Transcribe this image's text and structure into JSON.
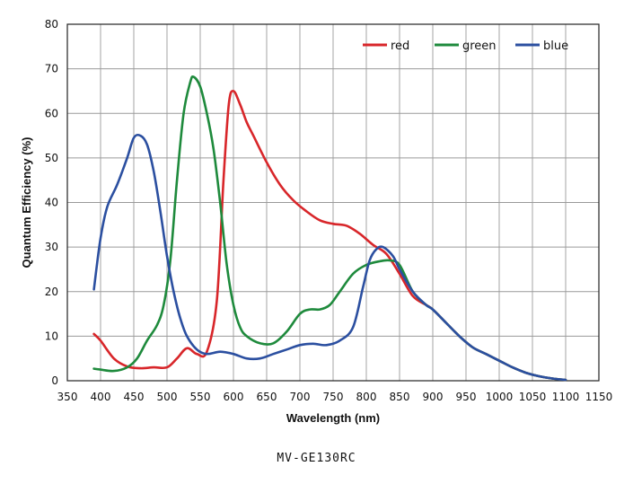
{
  "chart_data": {
    "type": "line",
    "title": "",
    "xlabel": "Wavelength (nm)",
    "ylabel": "Quantum Efficiency (%)",
    "xlim": [
      350,
      1150
    ],
    "ylim": [
      0,
      80
    ],
    "xticks": [
      350,
      400,
      450,
      500,
      550,
      600,
      650,
      700,
      750,
      800,
      850,
      900,
      950,
      1000,
      1050,
      1100,
      1150
    ],
    "yticks": [
      0,
      10,
      20,
      30,
      40,
      50,
      60,
      70,
      80
    ],
    "grid": true,
    "legend": "top-right",
    "series": [
      {
        "name": "red",
        "color": "#d8262a",
        "points": [
          [
            390,
            10.5
          ],
          [
            400,
            9
          ],
          [
            420,
            5
          ],
          [
            440,
            3.2
          ],
          [
            460,
            2.8
          ],
          [
            480,
            3
          ],
          [
            500,
            3
          ],
          [
            515,
            5
          ],
          [
            530,
            7.3
          ],
          [
            545,
            6
          ],
          [
            560,
            6.5
          ],
          [
            575,
            18
          ],
          [
            585,
            45
          ],
          [
            593,
            62
          ],
          [
            600,
            65
          ],
          [
            610,
            62
          ],
          [
            620,
            58
          ],
          [
            630,
            55
          ],
          [
            650,
            49
          ],
          [
            670,
            44
          ],
          [
            690,
            40.5
          ],
          [
            710,
            38
          ],
          [
            730,
            36
          ],
          [
            750,
            35.2
          ],
          [
            770,
            34.8
          ],
          [
            790,
            33
          ],
          [
            810,
            30.5
          ],
          [
            830,
            28.5
          ],
          [
            850,
            24
          ],
          [
            870,
            19
          ],
          [
            890,
            17
          ],
          [
            900,
            16
          ],
          [
            920,
            13
          ],
          [
            940,
            10
          ],
          [
            960,
            7.5
          ],
          [
            980,
            6
          ],
          [
            1000,
            4.5
          ],
          [
            1020,
            3
          ],
          [
            1040,
            1.8
          ],
          [
            1060,
            1
          ],
          [
            1080,
            0.5
          ],
          [
            1100,
            0.2
          ]
        ]
      },
      {
        "name": "green",
        "color": "#1e8a3c",
        "points": [
          [
            390,
            2.7
          ],
          [
            400,
            2.5
          ],
          [
            420,
            2.2
          ],
          [
            440,
            3
          ],
          [
            455,
            5
          ],
          [
            470,
            9
          ],
          [
            485,
            12.5
          ],
          [
            495,
            17
          ],
          [
            505,
            27
          ],
          [
            515,
            45
          ],
          [
            525,
            60
          ],
          [
            535,
            67
          ],
          [
            540,
            68.2
          ],
          [
            550,
            66
          ],
          [
            560,
            60
          ],
          [
            570,
            52
          ],
          [
            580,
            40
          ],
          [
            590,
            26
          ],
          [
            600,
            17
          ],
          [
            610,
            12
          ],
          [
            620,
            10
          ],
          [
            640,
            8.4
          ],
          [
            660,
            8.4
          ],
          [
            680,
            11
          ],
          [
            700,
            15
          ],
          [
            715,
            16
          ],
          [
            730,
            16
          ],
          [
            745,
            17
          ],
          [
            760,
            20
          ],
          [
            780,
            24
          ],
          [
            800,
            26
          ],
          [
            820,
            26.8
          ],
          [
            835,
            27
          ],
          [
            850,
            26
          ],
          [
            870,
            20
          ],
          [
            890,
            17
          ],
          [
            900,
            16
          ],
          [
            920,
            13
          ],
          [
            940,
            10
          ],
          [
            960,
            7.5
          ],
          [
            980,
            6
          ],
          [
            1000,
            4.5
          ],
          [
            1020,
            3
          ],
          [
            1040,
            1.8
          ],
          [
            1060,
            1
          ],
          [
            1080,
            0.5
          ],
          [
            1100,
            0.2
          ]
        ]
      },
      {
        "name": "blue",
        "color": "#2b4fa0",
        "points": [
          [
            390,
            20.5
          ],
          [
            400,
            32
          ],
          [
            410,
            39
          ],
          [
            425,
            44
          ],
          [
            440,
            50
          ],
          [
            450,
            54.5
          ],
          [
            460,
            55
          ],
          [
            470,
            53
          ],
          [
            480,
            47
          ],
          [
            490,
            38
          ],
          [
            500,
            28
          ],
          [
            510,
            20
          ],
          [
            520,
            14
          ],
          [
            530,
            10
          ],
          [
            545,
            7
          ],
          [
            560,
            6
          ],
          [
            580,
            6.5
          ],
          [
            600,
            6
          ],
          [
            620,
            5
          ],
          [
            640,
            5
          ],
          [
            660,
            6
          ],
          [
            680,
            7
          ],
          [
            700,
            8
          ],
          [
            720,
            8.3
          ],
          [
            740,
            8
          ],
          [
            760,
            9
          ],
          [
            780,
            12
          ],
          [
            795,
            21
          ],
          [
            805,
            27
          ],
          [
            815,
            29.5
          ],
          [
            825,
            30
          ],
          [
            840,
            28
          ],
          [
            850,
            25
          ],
          [
            870,
            20
          ],
          [
            890,
            17
          ],
          [
            900,
            16
          ],
          [
            920,
            13
          ],
          [
            940,
            10
          ],
          [
            960,
            7.5
          ],
          [
            980,
            6
          ],
          [
            1000,
            4.5
          ],
          [
            1020,
            3
          ],
          [
            1040,
            1.8
          ],
          [
            1060,
            1
          ],
          [
            1080,
            0.5
          ],
          [
            1100,
            0.2
          ]
        ]
      }
    ]
  },
  "caption": "MV-GE130RC"
}
